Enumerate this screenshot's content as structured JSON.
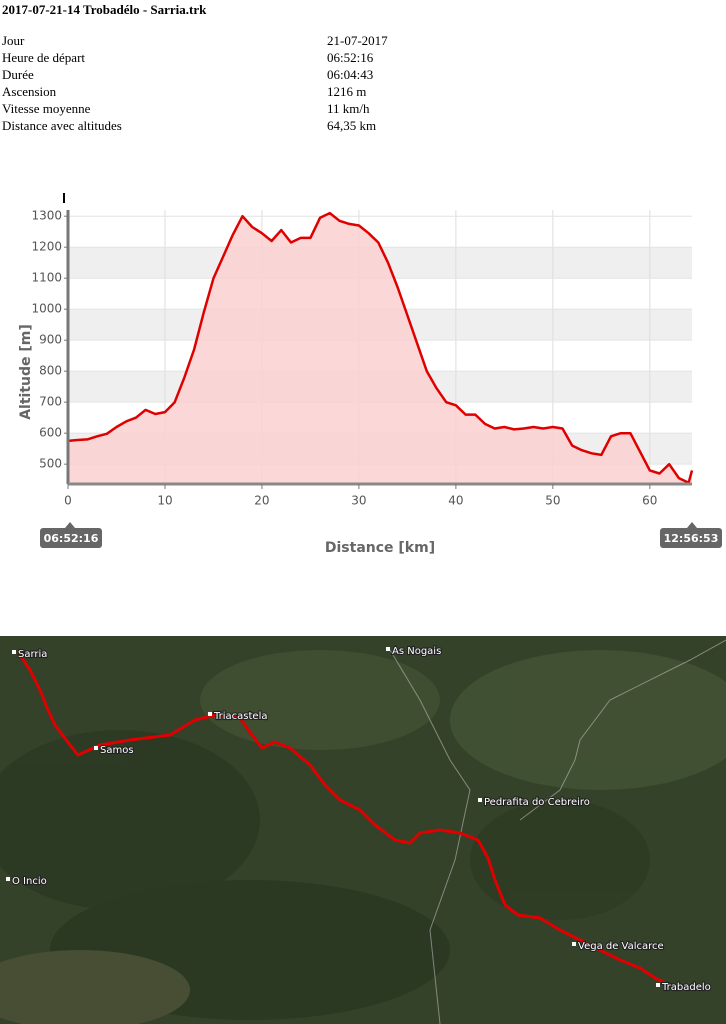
{
  "header": {
    "title": "2017-07-21-14 Trobadélo - Sarria.trk"
  },
  "info": [
    {
      "label": "Jour",
      "value": "21-07-2017"
    },
    {
      "label": "Heure de départ",
      "value": "06:52:16"
    },
    {
      "label": "Durée",
      "value": "06:04:43"
    },
    {
      "label": "Ascension",
      "value": "1216 m"
    },
    {
      "label": "Vitesse moyenne",
      "value": "11 km/h"
    },
    {
      "label": "Distance avec altitudes",
      "value": "64,35 km"
    }
  ],
  "chart_data": {
    "type": "area",
    "x_label": "Distance [km]",
    "y_label": "Altitude [m]",
    "start_label": "06:52:16",
    "end_label": "12:56:53",
    "x": [
      0,
      1,
      2,
      3,
      4,
      5,
      6,
      7,
      8,
      9,
      10,
      11,
      12,
      13,
      14,
      15,
      16,
      17,
      18,
      19,
      20,
      21,
      22,
      23,
      24,
      25,
      26,
      27,
      28,
      29,
      30,
      31,
      32,
      33,
      34,
      35,
      36,
      37,
      38,
      39,
      40,
      41,
      42,
      43,
      44,
      45,
      46,
      47,
      48,
      49,
      50,
      51,
      52,
      53,
      54,
      55,
      56,
      57,
      58,
      59,
      60,
      61,
      62,
      63,
      64,
      64.35
    ],
    "series": [
      {
        "color": "#e00000",
        "fill": "#fbd0d0",
        "values": [
          575,
          578,
          580,
          590,
          598,
          620,
          638,
          650,
          675,
          662,
          668,
          700,
          780,
          870,
          990,
          1100,
          1170,
          1240,
          1300,
          1265,
          1245,
          1220,
          1255,
          1215,
          1230,
          1230,
          1295,
          1310,
          1285,
          1275,
          1270,
          1245,
          1215,
          1150,
          1070,
          980,
          890,
          800,
          745,
          700,
          690,
          660,
          660,
          630,
          615,
          620,
          612,
          615,
          620,
          615,
          620,
          615,
          560,
          545,
          535,
          530,
          590,
          600,
          600,
          540,
          480,
          470,
          500,
          455,
          440,
          480
        ]
      }
    ],
    "xlim": [
      0,
      64.35
    ],
    "ylim": [
      436,
      1320
    ],
    "xticks": [
      0,
      10,
      20,
      30,
      40,
      50,
      60
    ],
    "yticks": [
      500,
      600,
      700,
      800,
      900,
      1000,
      1100,
      1200,
      1300
    ],
    "grid": true
  },
  "map": {
    "labels": [
      "Sarria",
      "As Nogais",
      "Triacastela",
      "Samos",
      "Pedrafita do Cebreiro",
      "O Incio",
      "Vega de Valcarce",
      "Trabadelo"
    ]
  }
}
